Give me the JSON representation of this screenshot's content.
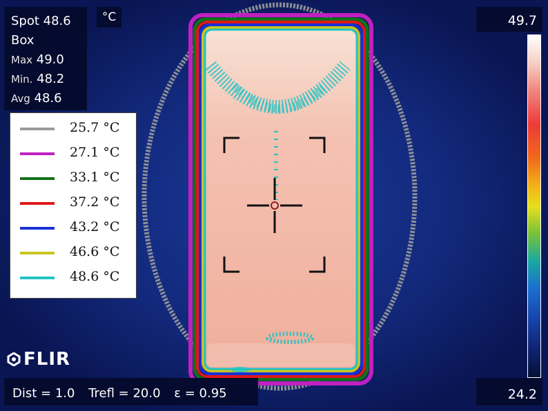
{
  "readout": {
    "spot_label": "Spot",
    "spot_value": "48.6",
    "box_label": "Box",
    "max_label": "Max",
    "max_value": "49.0",
    "min_label": "Min.",
    "min_value": "48.2",
    "avg_label": "Avg",
    "avg_value": "48.6"
  },
  "unit": "°C",
  "scale": {
    "max": "49.7",
    "min": "24.2"
  },
  "legend": [
    {
      "label": "25.7 °C",
      "color": "#9a9a9a"
    },
    {
      "label": "27.1 °C",
      "color": "#c020c0"
    },
    {
      "label": "33.1 °C",
      "color": "#127018"
    },
    {
      "label": "37.2 °C",
      "color": "#e01818"
    },
    {
      "label": "43.2 °C",
      "color": "#1830d8"
    },
    {
      "label": "46.6 °C",
      "color": "#c8c420"
    },
    {
      "label": "48.6 °C",
      "color": "#22c4c4"
    }
  ],
  "logo": "FLIR",
  "params": {
    "dist": "Dist = 1.0",
    "trefl": "Trefl = 20.0",
    "emissivity": "ε = 0.95"
  },
  "colors": {
    "background": "#0a1a5e",
    "object_fill": "#f2b7a6",
    "object_top": "#f7dccf"
  }
}
